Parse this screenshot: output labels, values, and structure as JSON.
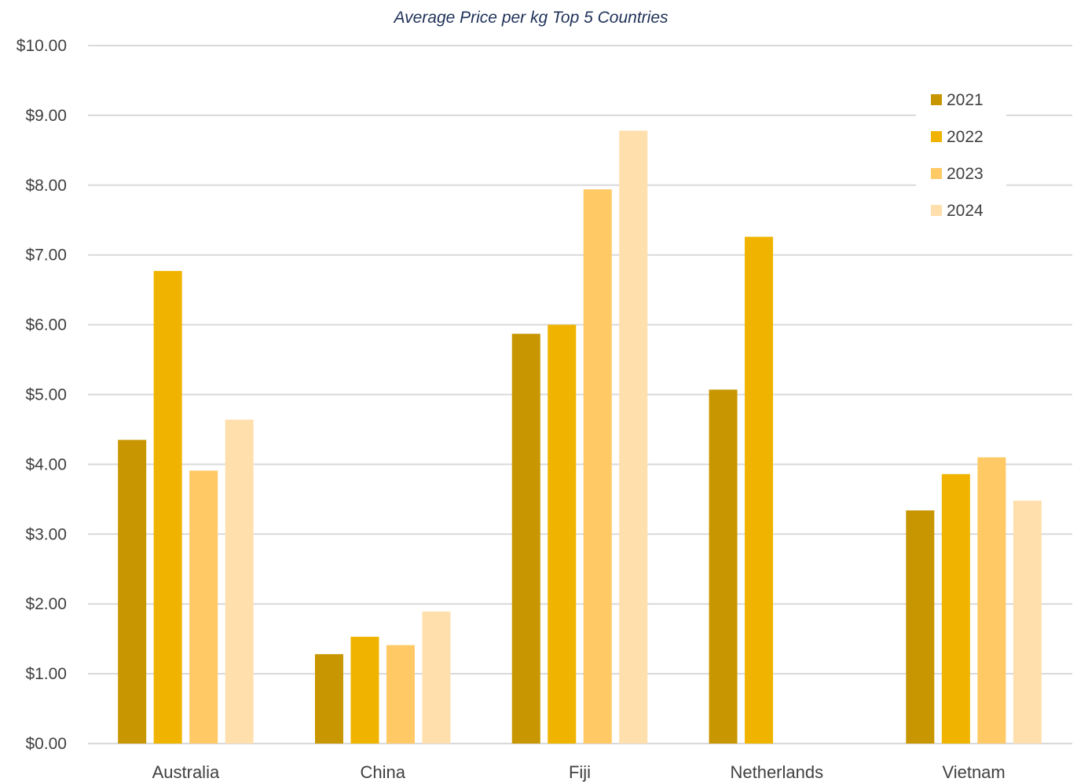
{
  "chart_data": {
    "type": "bar",
    "title": "Average Price per kg Top 5 Countries",
    "xlabel": "",
    "ylabel": "",
    "categories": [
      "Australia",
      "China",
      "Fiji",
      "Netherlands",
      "Vietnam"
    ],
    "series": [
      {
        "name": "2021",
        "values": [
          4.35,
          1.28,
          5.87,
          5.07,
          3.34
        ]
      },
      {
        "name": "2022",
        "values": [
          6.77,
          1.53,
          6.0,
          7.26,
          3.86
        ]
      },
      {
        "name": "2023",
        "values": [
          3.91,
          1.41,
          7.94,
          null,
          4.1
        ]
      },
      {
        "name": "2024",
        "values": [
          4.64,
          1.89,
          8.78,
          null,
          3.48
        ]
      }
    ],
    "ylim": [
      0,
      10
    ],
    "yticks": [
      "$0.00",
      "$1.00",
      "$2.00",
      "$3.00",
      "$4.00",
      "$5.00",
      "$6.00",
      "$7.00",
      "$8.00",
      "$9.00",
      "$10.00"
    ],
    "grid": true,
    "legend_position": "top-right",
    "colors": [
      "#c89600",
      "#f0b400",
      "#ffc966",
      "#ffdfab"
    ]
  }
}
